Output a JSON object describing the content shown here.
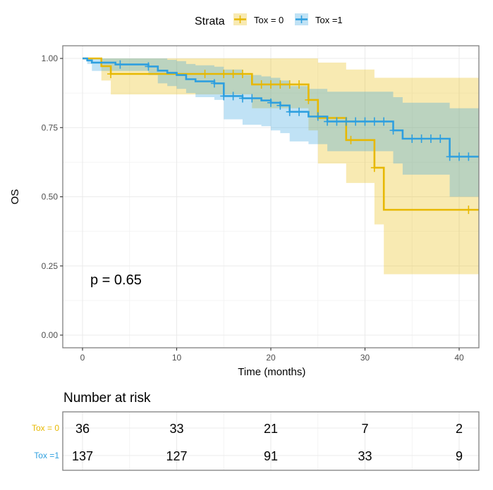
{
  "chart_data": {
    "type": "line",
    "subtype": "kaplan-meier",
    "title": "",
    "xlabel": "Time (months)",
    "ylabel": "OS",
    "xlim": [
      -2,
      42.2
    ],
    "ylim": [
      -0.045,
      1.045
    ],
    "x_ticks": [
      0,
      10,
      20,
      30,
      40
    ],
    "x_tick_labels": [
      "0",
      "10",
      "20",
      "30",
      "40"
    ],
    "y_ticks": [
      0,
      0.25,
      0.5,
      0.75,
      1.0
    ],
    "y_tick_labels": [
      "0.00",
      "0.25",
      "0.50",
      "0.75",
      "1.00"
    ],
    "grid": true,
    "legend": {
      "title": "Strata",
      "position": "top",
      "entries": [
        "Tox = 0",
        "Tox =1"
      ]
    },
    "annotation": "p = 0.65",
    "series": [
      {
        "name": "Tox = 0",
        "color": "#E7B800",
        "steps": [
          [
            0,
            1.0
          ],
          [
            2,
            0.972
          ],
          [
            3,
            0.944
          ],
          [
            18,
            0.906
          ],
          [
            24,
            0.85
          ],
          [
            25,
            0.785
          ],
          [
            28,
            0.705
          ],
          [
            31,
            0.605
          ],
          [
            32,
            0.453
          ],
          [
            42.2,
            0.453
          ]
        ],
        "upper": [
          [
            0,
            1.0
          ],
          [
            2,
            1.0
          ],
          [
            3,
            1.0
          ],
          [
            18,
            1.0
          ],
          [
            24,
            1.0
          ],
          [
            25,
            0.985
          ],
          [
            28,
            0.96
          ],
          [
            31,
            0.93
          ],
          [
            32,
            0.93
          ],
          [
            42.2,
            0.93
          ]
        ],
        "lower": [
          [
            0,
            1.0
          ],
          [
            2,
            0.92
          ],
          [
            3,
            0.87
          ],
          [
            18,
            0.82
          ],
          [
            24,
            0.74
          ],
          [
            25,
            0.62
          ],
          [
            28,
            0.55
          ],
          [
            31,
            0.4
          ],
          [
            32,
            0.22
          ],
          [
            42.2,
            0.22
          ]
        ],
        "censor_times": [
          3,
          13,
          15,
          16,
          17,
          19,
          20,
          21,
          22,
          23,
          24,
          28.5,
          31,
          41
        ]
      },
      {
        "name": "Tox =1",
        "color": "#2E9FDF",
        "steps": [
          [
            0,
            1.0
          ],
          [
            0.5,
            0.993
          ],
          [
            1,
            0.985
          ],
          [
            3.5,
            0.978
          ],
          [
            7,
            0.971
          ],
          [
            8,
            0.956
          ],
          [
            9,
            0.948
          ],
          [
            10,
            0.94
          ],
          [
            11,
            0.925
          ],
          [
            12,
            0.917
          ],
          [
            14,
            0.91
          ],
          [
            15,
            0.864
          ],
          [
            17,
            0.856
          ],
          [
            19,
            0.848
          ],
          [
            20,
            0.84
          ],
          [
            21,
            0.83
          ],
          [
            22,
            0.807
          ],
          [
            24,
            0.79
          ],
          [
            26,
            0.772
          ],
          [
            33,
            0.74
          ],
          [
            34,
            0.71
          ],
          [
            39,
            0.645
          ],
          [
            42.2,
            0.645
          ]
        ],
        "upper": [
          [
            0,
            1.0
          ],
          [
            0.5,
            1.0
          ],
          [
            1,
            1.0
          ],
          [
            3.5,
            1.0
          ],
          [
            7,
            1.0
          ],
          [
            8,
            1.0
          ],
          [
            9,
            0.995
          ],
          [
            10,
            0.99
          ],
          [
            11,
            0.98
          ],
          [
            12,
            0.975
          ],
          [
            14,
            0.97
          ],
          [
            15,
            0.96
          ],
          [
            17,
            0.94
          ],
          [
            19,
            0.935
          ],
          [
            20,
            0.93
          ],
          [
            21,
            0.92
          ],
          [
            22,
            0.9
          ],
          [
            24,
            0.89
          ],
          [
            26,
            0.88
          ],
          [
            33,
            0.86
          ],
          [
            34,
            0.84
          ],
          [
            39,
            0.82
          ],
          [
            42.2,
            0.82
          ]
        ],
        "lower": [
          [
            0,
            1.0
          ],
          [
            0.5,
            0.98
          ],
          [
            1,
            0.955
          ],
          [
            3.5,
            0.955
          ],
          [
            7,
            0.94
          ],
          [
            8,
            0.91
          ],
          [
            9,
            0.9
          ],
          [
            10,
            0.89
          ],
          [
            11,
            0.875
          ],
          [
            12,
            0.86
          ],
          [
            14,
            0.85
          ],
          [
            15,
            0.78
          ],
          [
            17,
            0.76
          ],
          [
            19,
            0.755
          ],
          [
            20,
            0.74
          ],
          [
            21,
            0.73
          ],
          [
            22,
            0.7
          ],
          [
            24,
            0.69
          ],
          [
            26,
            0.665
          ],
          [
            33,
            0.62
          ],
          [
            34,
            0.58
          ],
          [
            39,
            0.5
          ],
          [
            42.2,
            0.5
          ]
        ],
        "censor_times": [
          4,
          7,
          14,
          15,
          16,
          17,
          18,
          20,
          21,
          22,
          23,
          25,
          26,
          27,
          28,
          29,
          30,
          31,
          32,
          33,
          35,
          36,
          37,
          38,
          39,
          40,
          41
        ]
      }
    ]
  },
  "risk_table": {
    "title": "Number at risk",
    "times": [
      0,
      10,
      20,
      30,
      40
    ],
    "rows": [
      {
        "label": "Tox = 0",
        "color": "#E7B800",
        "values": [
          "36",
          "33",
          "21",
          "7",
          "2"
        ]
      },
      {
        "label": "Tox =1",
        "color": "#2E9FDF",
        "values": [
          "137",
          "127",
          "91",
          "33",
          "9"
        ]
      }
    ]
  }
}
